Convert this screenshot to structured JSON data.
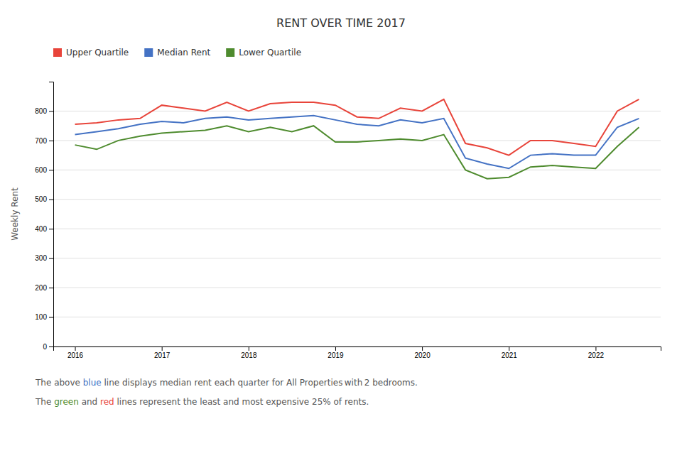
{
  "chart_data": {
    "type": "line",
    "title": "RENT OVER TIME 2017",
    "y_label": "Weekly Rent",
    "x": [
      2016.0,
      2016.25,
      2016.5,
      2016.75,
      2017.0,
      2017.25,
      2017.5,
      2017.75,
      2018.0,
      2018.25,
      2018.5,
      2018.75,
      2019.0,
      2019.25,
      2019.5,
      2019.75,
      2020.0,
      2020.25,
      2020.5,
      2020.75,
      2021.0,
      2021.25,
      2021.5,
      2021.75,
      2022.0,
      2022.25,
      2022.5
    ],
    "series": [
      {
        "name": "Upper Quartile",
        "color": "#e8443a",
        "values": [
          755,
          760,
          770,
          775,
          820,
          810,
          800,
          830,
          800,
          825,
          830,
          830,
          820,
          780,
          775,
          810,
          800,
          840,
          690,
          675,
          650,
          700,
          700,
          690,
          680,
          800,
          840
        ]
      },
      {
        "name": "Median Rent",
        "color": "#4472c4",
        "values": [
          720,
          730,
          740,
          755,
          765,
          760,
          775,
          780,
          770,
          775,
          780,
          785,
          770,
          755,
          750,
          770,
          760,
          775,
          640,
          620,
          605,
          650,
          655,
          650,
          650,
          745,
          775
        ]
      },
      {
        "name": "Lower Quartile",
        "color": "#4e8b2e",
        "values": [
          685,
          670,
          700,
          715,
          725,
          730,
          735,
          750,
          730,
          745,
          730,
          750,
          695,
          695,
          700,
          705,
          700,
          720,
          600,
          570,
          575,
          610,
          615,
          610,
          605,
          680,
          745
        ]
      }
    ],
    "xlim": [
      2015.75,
      2022.75
    ],
    "xticks": [
      2016,
      2017,
      2018,
      2019,
      2020,
      2021,
      2022
    ],
    "ylim": [
      0,
      900
    ],
    "yticks": [
      0,
      100,
      200,
      300,
      400,
      500,
      600,
      700,
      800
    ],
    "grid": true,
    "legend": "top",
    "annotations": [
      [
        {
          "text": "The above ",
          "color": "#555555"
        },
        {
          "text": "blue",
          "color": "#4472c4"
        },
        {
          "text": " line displays median rent each quarter for ",
          "color": "#555555"
        },
        {
          "text": "All Properties",
          "color": "#555555"
        },
        {
          "text": " with ",
          "color": "#555555"
        },
        {
          "text": "2",
          "color": "#555555"
        },
        {
          "text": " bedrooms.",
          "color": "#555555"
        }
      ],
      [
        {
          "text": "The ",
          "color": "#555555"
        },
        {
          "text": "green",
          "color": "#4e8b2e"
        },
        {
          "text": " and ",
          "color": "#555555"
        },
        {
          "text": "red",
          "color": "#e8443a"
        },
        {
          "text": " lines represent the least and most expensive 25% of rents.",
          "color": "#555555"
        }
      ]
    ]
  }
}
